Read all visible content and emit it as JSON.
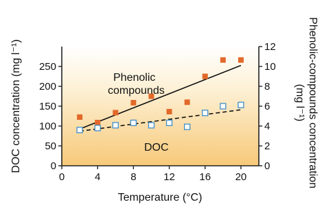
{
  "chart_data": {
    "type": "scatter",
    "xlabel": "Temperature (°C)",
    "ylabel_left": "DOC concentration (mg l⁻¹)",
    "ylabel_right_line1": "Phenolic-compounds concentration",
    "ylabel_right_line2": "(mg l⁻¹)",
    "xlim": [
      0,
      22
    ],
    "ylim_left": [
      0,
      300
    ],
    "ylim_right": [
      0,
      12
    ],
    "x_ticks": [
      0,
      4,
      8,
      12,
      16,
      20
    ],
    "y_left_ticks": [
      0,
      50,
      100,
      150,
      200,
      250
    ],
    "y_right_ticks": [
      0,
      2,
      4,
      6,
      8,
      10,
      12
    ],
    "grid": false,
    "background": "gradient white to light orange",
    "series": [
      {
        "name": "Phenolic compounds",
        "axis": "right",
        "marker": "filled-square",
        "color": "#e2692a",
        "trend_line": "solid",
        "trend": {
          "x": [
            2,
            20
          ],
          "y": [
            3.7,
            10.1
          ]
        },
        "points": [
          {
            "x": 2,
            "y": 4.9
          },
          {
            "x": 4,
            "y": 4.35
          },
          {
            "x": 6,
            "y": 5.35
          },
          {
            "x": 8,
            "y": 6.35
          },
          {
            "x": 10,
            "y": 7.0
          },
          {
            "x": 12,
            "y": 5.45
          },
          {
            "x": 14,
            "y": 6.4
          },
          {
            "x": 16,
            "y": 9.0
          },
          {
            "x": 18,
            "y": 10.65
          },
          {
            "x": 20,
            "y": 10.65
          }
        ]
      },
      {
        "name": "DOC",
        "axis": "left",
        "marker": "open-square",
        "color": "#3e8ec8",
        "trend_line": "dashed",
        "trend": {
          "x": [
            2,
            20
          ],
          "y": [
            87,
            141
          ]
        },
        "points": [
          {
            "x": 2,
            "y": 90
          },
          {
            "x": 4,
            "y": 95
          },
          {
            "x": 6,
            "y": 102
          },
          {
            "x": 8,
            "y": 108
          },
          {
            "x": 10,
            "y": 102
          },
          {
            "x": 12,
            "y": 108
          },
          {
            "x": 14,
            "y": 98
          },
          {
            "x": 16,
            "y": 133
          },
          {
            "x": 18,
            "y": 150
          },
          {
            "x": 20,
            "y": 153
          }
        ]
      }
    ],
    "annotations": {
      "phenolic_line1": "Phenolic",
      "phenolic_line2": "compounds",
      "doc": "DOC"
    }
  }
}
